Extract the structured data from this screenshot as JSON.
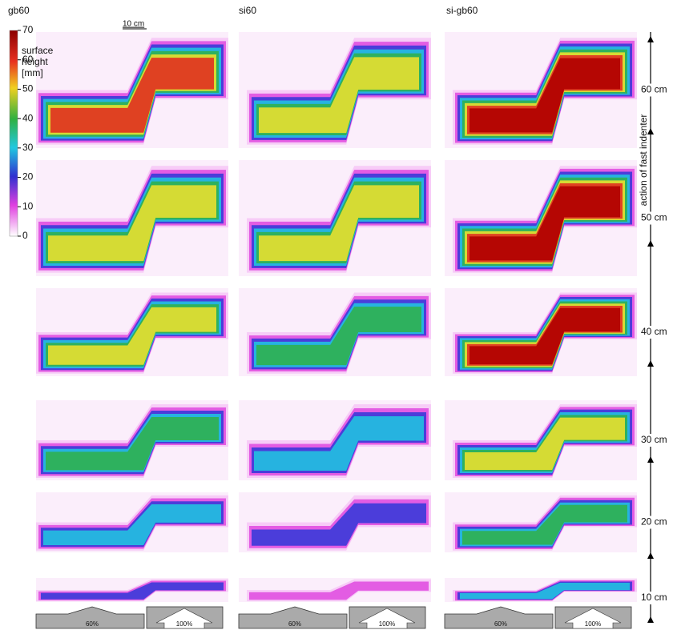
{
  "columns": [
    "gb60",
    "si60",
    "si-gb60"
  ],
  "scale_bar": "10 cm",
  "colorbar": {
    "label": [
      "surface",
      "height",
      "[mm]"
    ],
    "ticks": [
      70,
      60,
      50,
      40,
      30,
      20,
      10,
      0
    ]
  },
  "rows": [
    "60 cm",
    "50 cm",
    "40 cm",
    "30 cm",
    "20 cm",
    "10 cm"
  ],
  "arrow_label": "action of fast indenter",
  "indenter_labels": [
    "60%",
    "100%"
  ]
}
